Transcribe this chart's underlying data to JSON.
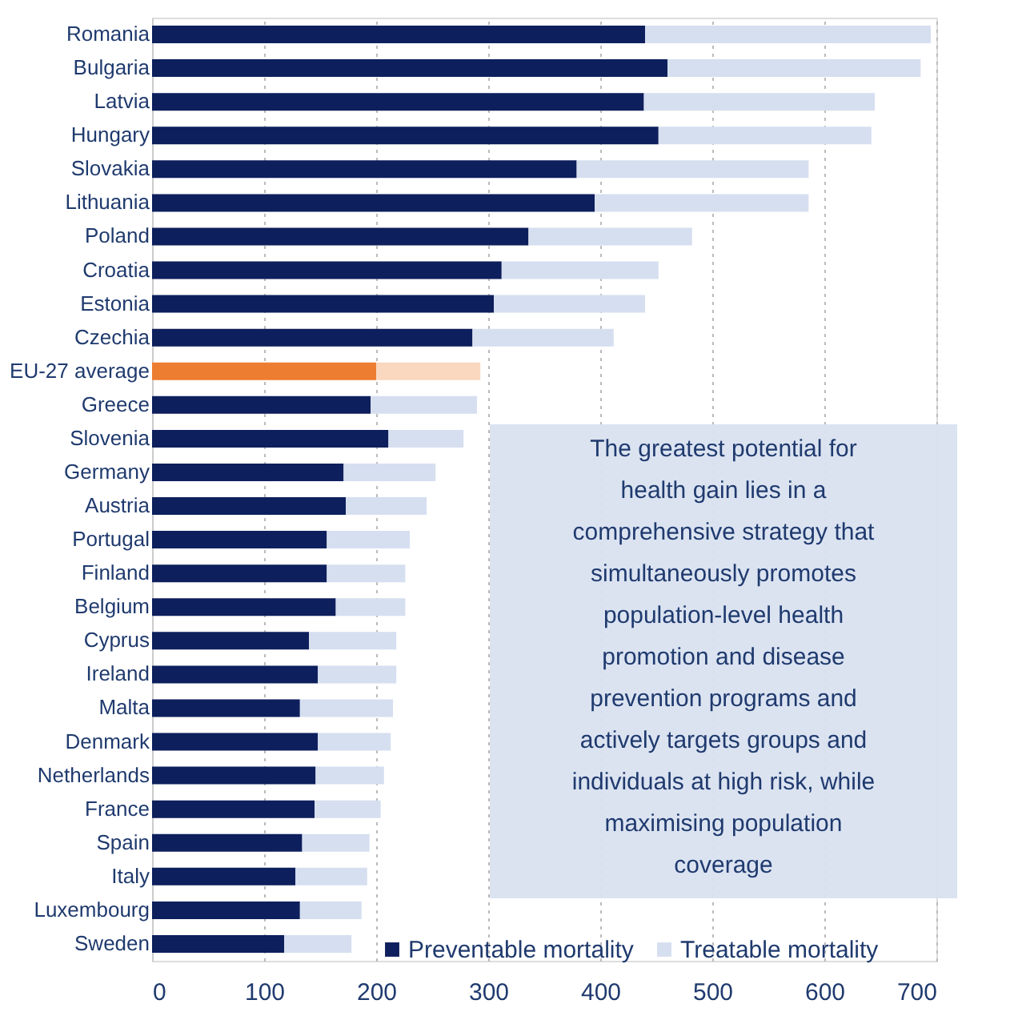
{
  "chart_data": {
    "type": "bar",
    "orientation": "horizontal",
    "stacked": true,
    "categories": [
      "Romania",
      "Bulgaria",
      "Latvia",
      "Hungary",
      "Slovakia",
      "Lithuania",
      "Poland",
      "Croatia",
      "Estonia",
      "Czechia",
      "EU-27 average",
      "Greece",
      "Slovenia",
      "Germany",
      "Austria",
      "Portugal",
      "Finland",
      "Belgium",
      "Cyprus",
      "Ireland",
      "Malta",
      "Denmark",
      "Netherlands",
      "France",
      "Spain",
      "Italy",
      "Luxembourg",
      "Sweden"
    ],
    "series": [
      {
        "name": "Preventable mortality",
        "color": "#0d1f5c",
        "colors": [
          "#0d1f5c",
          "#0d1f5c",
          "#0d1f5c",
          "#0d1f5c",
          "#0d1f5c",
          "#0d1f5c",
          "#0d1f5c",
          "#0d1f5c",
          "#0d1f5c",
          "#0d1f5c",
          "#ed7d31",
          "#0d1f5c",
          "#0d1f5c",
          "#0d1f5c",
          "#0d1f5c",
          "#0d1f5c",
          "#0d1f5c",
          "#0d1f5c",
          "#0d1f5c",
          "#0d1f5c",
          "#0d1f5c",
          "#0d1f5c",
          "#0d1f5c",
          "#0d1f5c",
          "#0d1f5c",
          "#0d1f5c",
          "#0d1f5c",
          "#0d1f5c"
        ],
        "values": [
          440,
          460,
          439,
          452,
          379,
          395,
          336,
          312,
          305,
          286,
          200,
          195,
          211,
          171,
          173,
          156,
          156,
          164,
          140,
          148,
          132,
          148,
          146,
          145,
          134,
          128,
          132,
          118
        ]
      },
      {
        "name": "Treatable mortality",
        "color": "#d6dff0",
        "colors": [
          "#d6dff0",
          "#d6dff0",
          "#d6dff0",
          "#d6dff0",
          "#d6dff0",
          "#d6dff0",
          "#d6dff0",
          "#d6dff0",
          "#d6dff0",
          "#d6dff0",
          "#fad7bf",
          "#d6dff0",
          "#d6dff0",
          "#d6dff0",
          "#d6dff0",
          "#d6dff0",
          "#d6dff0",
          "#d6dff0",
          "#d6dff0",
          "#d6dff0",
          "#d6dff0",
          "#d6dff0",
          "#d6dff0",
          "#d6dff0",
          "#d6dff0",
          "#d6dff0",
          "#d6dff0",
          "#d6dff0"
        ],
        "values": [
          255,
          226,
          206,
          190,
          207,
          191,
          146,
          140,
          135,
          126,
          93,
          95,
          67,
          82,
          72,
          74,
          70,
          62,
          78,
          70,
          83,
          65,
          61,
          59,
          60,
          64,
          55,
          60
        ]
      }
    ],
    "xlim": [
      0,
      700
    ],
    "xticks": [
      0,
      100,
      200,
      300,
      400,
      500,
      600,
      700
    ],
    "grid": "x",
    "legend": "bottom right",
    "annotations": [
      "The greatest potential for\nhealth gain lies in a\ncomprehensive strategy that\nsimultaneously promotes\npopulation-level health\npromotion and disease\nprevention programs and\nactively targets groups and\nindividuals at high risk, while\nmaximising population\ncoverage"
    ]
  }
}
